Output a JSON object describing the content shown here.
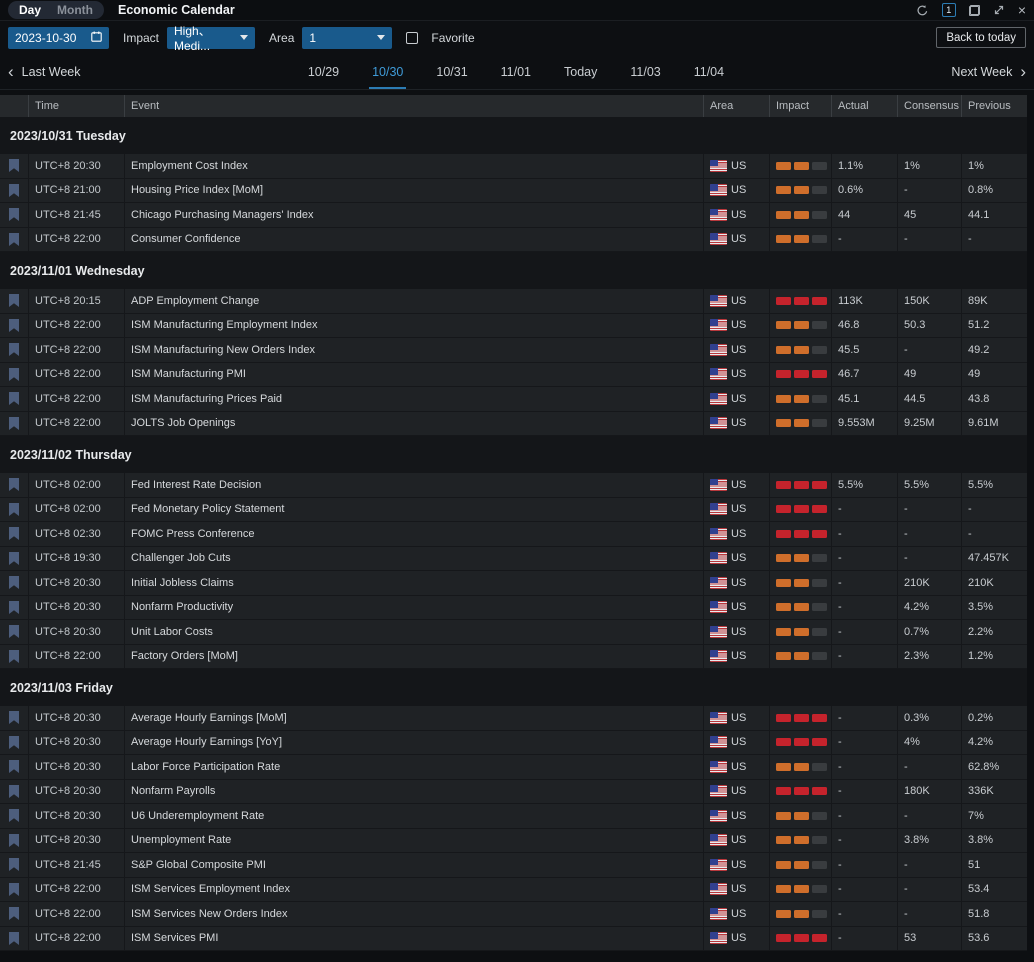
{
  "topbar": {
    "mode_tabs": {
      "day": "Day",
      "month": "Month",
      "active": "Day"
    },
    "title": "Economic Calendar",
    "window_count": "1",
    "icons": [
      "refresh-icon",
      "count-badge",
      "restore-icon",
      "expand-icon",
      "close-icon"
    ]
  },
  "filters": {
    "date_value": "2023-10-30",
    "impact_label": "Impact",
    "impact_value": "High、Medi...",
    "area_label": "Area",
    "area_value": "1",
    "favorite_label": "Favorite",
    "back_to_today": "Back to today"
  },
  "week_nav": {
    "prev": "Last Week",
    "next": "Next Week",
    "dates": [
      {
        "label": "10/29",
        "active": false
      },
      {
        "label": "10/30",
        "active": true
      },
      {
        "label": "10/31",
        "active": false
      },
      {
        "label": "11/01",
        "active": false
      },
      {
        "label": "Today",
        "active": false
      },
      {
        "label": "11/03",
        "active": false
      },
      {
        "label": "11/04",
        "active": false
      }
    ]
  },
  "colors": {
    "accent_blue": "#3f9bd8",
    "fill_blue": "#195a8c",
    "impact_high": "#c5232c",
    "impact_medium": "#cf6e2b",
    "impact_empty": "#393c3f"
  },
  "table": {
    "columns": [
      "Time",
      "Event",
      "Area",
      "Impact",
      "Actual",
      "Consensus",
      "Previous"
    ],
    "sections": [
      {
        "date": "2023/10/31 Tuesday",
        "rows": [
          {
            "time": "UTC+8 20:30",
            "event": "Employment Cost Index",
            "area": "US",
            "impact": "medium",
            "actual": "1.1%",
            "consensus": "1%",
            "previous": "1%"
          },
          {
            "time": "UTC+8 21:00",
            "event": "Housing Price Index [MoM]",
            "area": "US",
            "impact": "medium",
            "actual": "0.6%",
            "consensus": "-",
            "previous": "0.8%"
          },
          {
            "time": "UTC+8 21:45",
            "event": "Chicago Purchasing Managers' Index",
            "area": "US",
            "impact": "medium",
            "actual": "44",
            "consensus": "45",
            "previous": "44.1"
          },
          {
            "time": "UTC+8 22:00",
            "event": "Consumer Confidence",
            "area": "US",
            "impact": "medium",
            "actual": "-",
            "consensus": "-",
            "previous": "-"
          }
        ]
      },
      {
        "date": "2023/11/01 Wednesday",
        "rows": [
          {
            "time": "UTC+8 20:15",
            "event": "ADP Employment Change",
            "area": "US",
            "impact": "high",
            "actual": "113K",
            "consensus": "150K",
            "previous": "89K"
          },
          {
            "time": "UTC+8 22:00",
            "event": "ISM Manufacturing Employment Index",
            "area": "US",
            "impact": "medium",
            "actual": "46.8",
            "consensus": "50.3",
            "previous": "51.2"
          },
          {
            "time": "UTC+8 22:00",
            "event": "ISM Manufacturing New Orders Index",
            "area": "US",
            "impact": "medium",
            "actual": "45.5",
            "consensus": "-",
            "previous": "49.2"
          },
          {
            "time": "UTC+8 22:00",
            "event": "ISM Manufacturing PMI",
            "area": "US",
            "impact": "high",
            "actual": "46.7",
            "consensus": "49",
            "previous": "49"
          },
          {
            "time": "UTC+8 22:00",
            "event": "ISM Manufacturing Prices Paid",
            "area": "US",
            "impact": "medium",
            "actual": "45.1",
            "consensus": "44.5",
            "previous": "43.8"
          },
          {
            "time": "UTC+8 22:00",
            "event": "JOLTS Job Openings",
            "area": "US",
            "impact": "medium",
            "actual": "9.553M",
            "consensus": "9.25M",
            "previous": "9.61M"
          }
        ]
      },
      {
        "date": "2023/11/02 Thursday",
        "rows": [
          {
            "time": "UTC+8 02:00",
            "event": "Fed Interest Rate Decision",
            "area": "US",
            "impact": "high",
            "actual": "5.5%",
            "consensus": "5.5%",
            "previous": "5.5%"
          },
          {
            "time": "UTC+8 02:00",
            "event": "Fed Monetary Policy Statement",
            "area": "US",
            "impact": "high",
            "actual": "-",
            "consensus": "-",
            "previous": "-"
          },
          {
            "time": "UTC+8 02:30",
            "event": "FOMC Press Conference",
            "area": "US",
            "impact": "high",
            "actual": "-",
            "consensus": "-",
            "previous": "-"
          },
          {
            "time": "UTC+8 19:30",
            "event": "Challenger Job Cuts",
            "area": "US",
            "impact": "medium",
            "actual": "-",
            "consensus": "-",
            "previous": "47.457K"
          },
          {
            "time": "UTC+8 20:30",
            "event": "Initial Jobless Claims",
            "area": "US",
            "impact": "medium",
            "actual": "-",
            "consensus": "210K",
            "previous": "210K"
          },
          {
            "time": "UTC+8 20:30",
            "event": "Nonfarm Productivity",
            "area": "US",
            "impact": "medium",
            "actual": "-",
            "consensus": "4.2%",
            "previous": "3.5%"
          },
          {
            "time": "UTC+8 20:30",
            "event": "Unit Labor Costs",
            "area": "US",
            "impact": "medium",
            "actual": "-",
            "consensus": "0.7%",
            "previous": "2.2%"
          },
          {
            "time": "UTC+8 22:00",
            "event": "Factory Orders [MoM]",
            "area": "US",
            "impact": "medium",
            "actual": "-",
            "consensus": "2.3%",
            "previous": "1.2%"
          }
        ]
      },
      {
        "date": "2023/11/03 Friday",
        "rows": [
          {
            "time": "UTC+8 20:30",
            "event": "Average Hourly Earnings [MoM]",
            "area": "US",
            "impact": "high",
            "actual": "-",
            "consensus": "0.3%",
            "previous": "0.2%"
          },
          {
            "time": "UTC+8 20:30",
            "event": "Average Hourly Earnings [YoY]",
            "area": "US",
            "impact": "high",
            "actual": "-",
            "consensus": "4%",
            "previous": "4.2%"
          },
          {
            "time": "UTC+8 20:30",
            "event": "Labor Force Participation Rate",
            "area": "US",
            "impact": "medium",
            "actual": "-",
            "consensus": "-",
            "previous": "62.8%"
          },
          {
            "time": "UTC+8 20:30",
            "event": "Nonfarm Payrolls",
            "area": "US",
            "impact": "high",
            "actual": "-",
            "consensus": "180K",
            "previous": "336K"
          },
          {
            "time": "UTC+8 20:30",
            "event": "U6 Underemployment Rate",
            "area": "US",
            "impact": "medium",
            "actual": "-",
            "consensus": "-",
            "previous": "7%"
          },
          {
            "time": "UTC+8 20:30",
            "event": "Unemployment Rate",
            "area": "US",
            "impact": "medium",
            "actual": "-",
            "consensus": "3.8%",
            "previous": "3.8%"
          },
          {
            "time": "UTC+8 21:45",
            "event": "S&P Global Composite PMI",
            "area": "US",
            "impact": "medium",
            "actual": "-",
            "consensus": "-",
            "previous": "51"
          },
          {
            "time": "UTC+8 22:00",
            "event": "ISM Services Employment Index",
            "area": "US",
            "impact": "medium",
            "actual": "-",
            "consensus": "-",
            "previous": "53.4"
          },
          {
            "time": "UTC+8 22:00",
            "event": "ISM Services New Orders Index",
            "area": "US",
            "impact": "medium",
            "actual": "-",
            "consensus": "-",
            "previous": "51.8"
          },
          {
            "time": "UTC+8 22:00",
            "event": "ISM Services PMI",
            "area": "US",
            "impact": "high",
            "actual": "-",
            "consensus": "53",
            "previous": "53.6"
          }
        ]
      }
    ]
  }
}
